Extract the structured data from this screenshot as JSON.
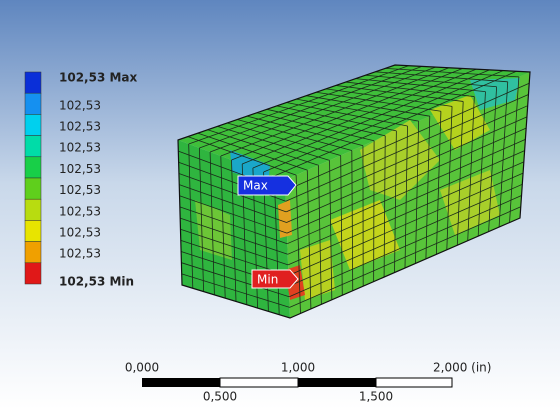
{
  "legend": {
    "entries": [
      "102,53 Max",
      "102,53",
      "102,53",
      "102,53",
      "102,53",
      "102,53",
      "102,53",
      "102,53",
      "102,53",
      "102,53 Min"
    ]
  },
  "probes": {
    "max": "Max",
    "min": "Min"
  },
  "scale_bar": {
    "top_labels": [
      "0,000",
      "1,000",
      "2,000 (in)"
    ],
    "bottom_labels": [
      "0,500",
      "1,500"
    ]
  }
}
